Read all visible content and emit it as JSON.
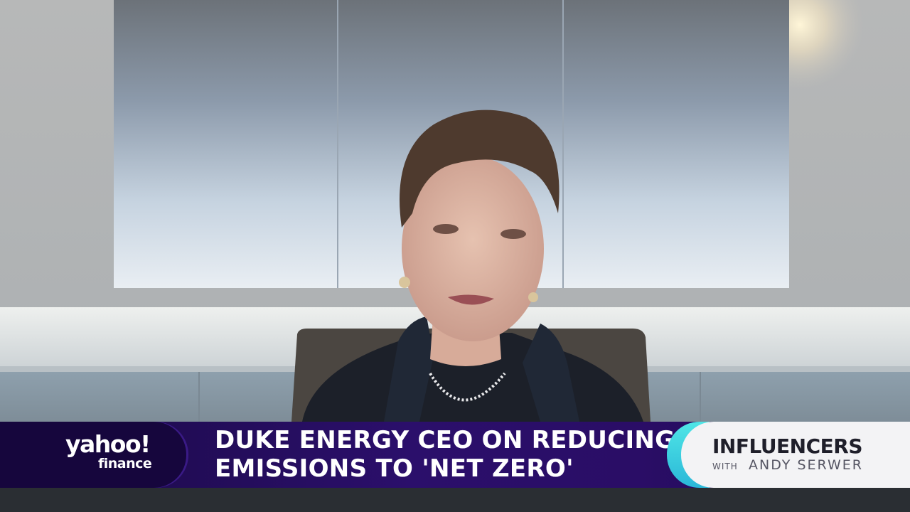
{
  "banner": {
    "logo_main": "yahoo!",
    "logo_sub": "finance",
    "headline_line1": "DUKE ENERGY CEO ON REDUCING",
    "headline_line2": "EMISSIONS TO 'NET ZERO'",
    "show_title": "INFLUENCERS",
    "show_with": "WITH",
    "show_host": "ANDY SERWER"
  },
  "colors": {
    "banner_purple": "#2b0f6b",
    "logo_panel": "#16063d",
    "accent_cyan": "#4fe6e6",
    "show_panel": "#f3f3f5"
  }
}
